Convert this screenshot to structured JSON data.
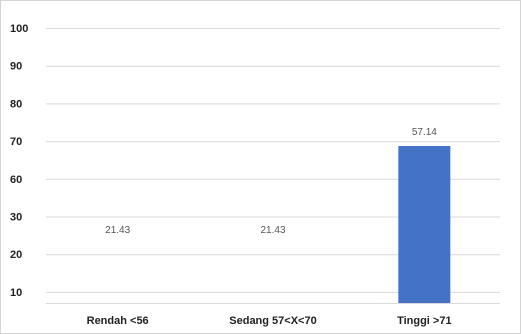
{
  "chart_data": {
    "type": "bar",
    "categories": [
      "Rendah <56",
      "Sedang 57<X<70",
      "Tinggi >71"
    ],
    "values": [
      21.43,
      21.43,
      57.14
    ],
    "data_labels": [
      "21.43",
      "21.43",
      "57.14"
    ],
    "y_tick_labels": [
      "100",
      "90",
      "80",
      "70",
      "60",
      "30",
      "20",
      "10"
    ],
    "title": "",
    "xlabel": "",
    "ylabel": "",
    "ylim": [
      0,
      100
    ],
    "grid": true,
    "legend": "none",
    "bar_color": "#4472C4",
    "grid_color": "#d9d9d9"
  }
}
